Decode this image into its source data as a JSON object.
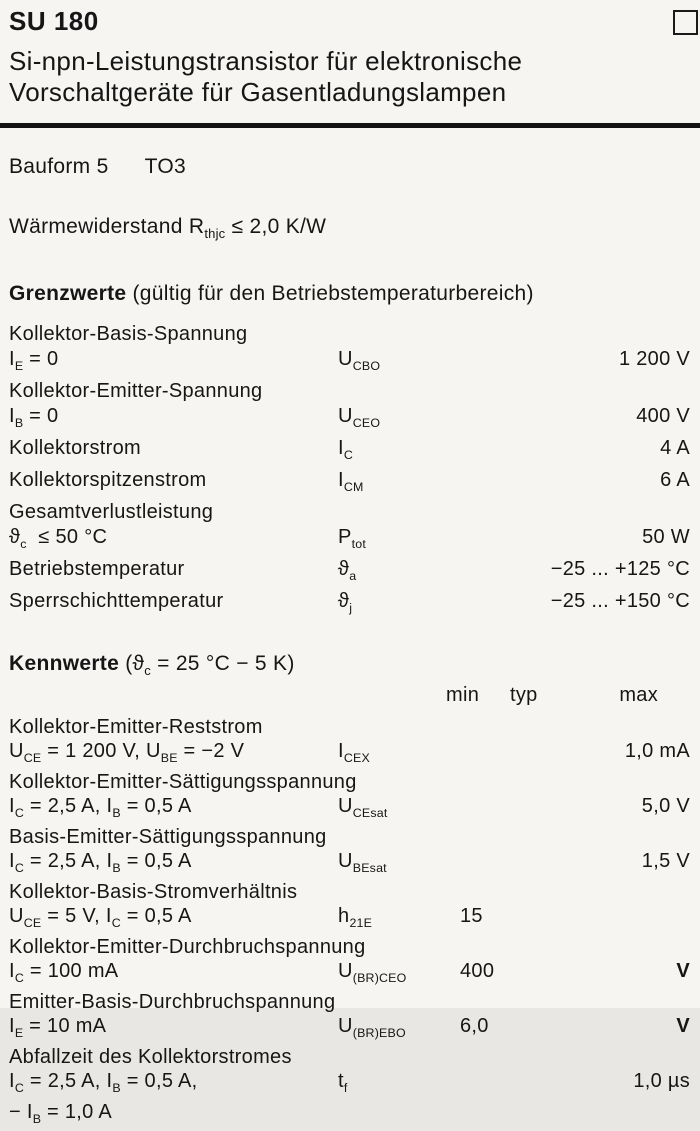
{
  "header": {
    "part_number": "SU 180",
    "title_line1": "Si-npn-Leistungstransistor für elektronische",
    "title_line2": "Vorschaltgeräte für Gasentladungslampen",
    "corner_icon": "square-outline"
  },
  "package": {
    "label": "Bauform 5",
    "value": "TO3"
  },
  "thermal": {
    "text": "Wärmewiderstand R_{thjc} ≤ 2,0 K/W"
  },
  "colors": {
    "paper": "#f6f5f1",
    "ink": "#161616"
  },
  "grenzwerte": {
    "heading": "Grenzwerte",
    "heading_note": "(gültig für den Betriebstemperaturbereich)",
    "rows": [
      {
        "left": "Kollektor-Basis-Spannung"
      },
      {
        "left": "I_{E} = 0",
        "sym": "U_{CBO}",
        "val": "1 200 V"
      },
      {
        "left": "Kollektor-Emitter-Spannung"
      },
      {
        "left": "I_{B} = 0",
        "sym": "U_{CEO}",
        "val": "400 V"
      },
      {
        "left": "Kollektorstrom",
        "sym": "I_{C}",
        "val": "4 A"
      },
      {
        "left": "Kollektorspitzenstrom",
        "sym": "I_{CM}",
        "val": "6 A"
      },
      {
        "left": "Gesamtverlustleistung"
      },
      {
        "left": "ϑ_{c}  ≤ 50 °C",
        "sym": "P_{tot}",
        "val": "50 W"
      },
      {
        "left": "Betriebstemperatur",
        "sym": "ϑ_{a}",
        "val": "−25 ... +125 °C"
      },
      {
        "left": "Sperrschichttemperatur",
        "sym": "ϑ_{j}",
        "val": "−25 ... +150 °C"
      }
    ]
  },
  "kennwerte": {
    "heading": "Kennwerte",
    "heading_note": "(ϑ_{c} = 25 °C − 5 K)",
    "columns": {
      "min": "min",
      "typ": "typ",
      "max": "max"
    },
    "rows": [
      {
        "left": "Kollektor-Emitter-Reststrom"
      },
      {
        "left": "U_{CE} = 1 200 V, U_{BE} = −2 V",
        "sym": "I_{CEX}",
        "max": "1,0 mA"
      },
      {
        "left": "Kollektor-Emitter-Sättigungsspannung"
      },
      {
        "left": "I_{C} = 2,5 A, I_{B} = 0,5 A",
        "sym": "U_{CEsat}",
        "max": "5,0 V"
      },
      {
        "left": "Basis-Emitter-Sättigungsspannung"
      },
      {
        "left": "I_{C} = 2,5 A, I_{B} = 0,5 A",
        "sym": "U_{BEsat}",
        "max": "1,5 V"
      },
      {
        "left": "Kollektor-Basis-Stromverhältnis"
      },
      {
        "left": "U_{CE} = 5 V, I_{C} = 0,5 A",
        "sym": "h_{21E}",
        "min": "15"
      },
      {
        "left": "Kollektor-Emitter-Durchbruchspannung"
      },
      {
        "left": "I_{C} = 100 mA",
        "sym": "U_{(BR)CEO}",
        "min": "400",
        "unit": "V"
      },
      {
        "left": "Emitter-Basis-Durchbruchspannung"
      },
      {
        "left": "I_{E} = 10 mA",
        "sym": "U_{(BR)EBO}",
        "min": "6,0",
        "unit": "V"
      },
      {
        "left": "Abfallzeit des Kollektorstromes"
      },
      {
        "left": "I_{C} = 2,5 A, I_{B} = 0,5 A,",
        "sym": "t_{f}",
        "max": "1,0 µs"
      },
      {
        "left": "− I_{B} = 1,0 A"
      }
    ]
  }
}
